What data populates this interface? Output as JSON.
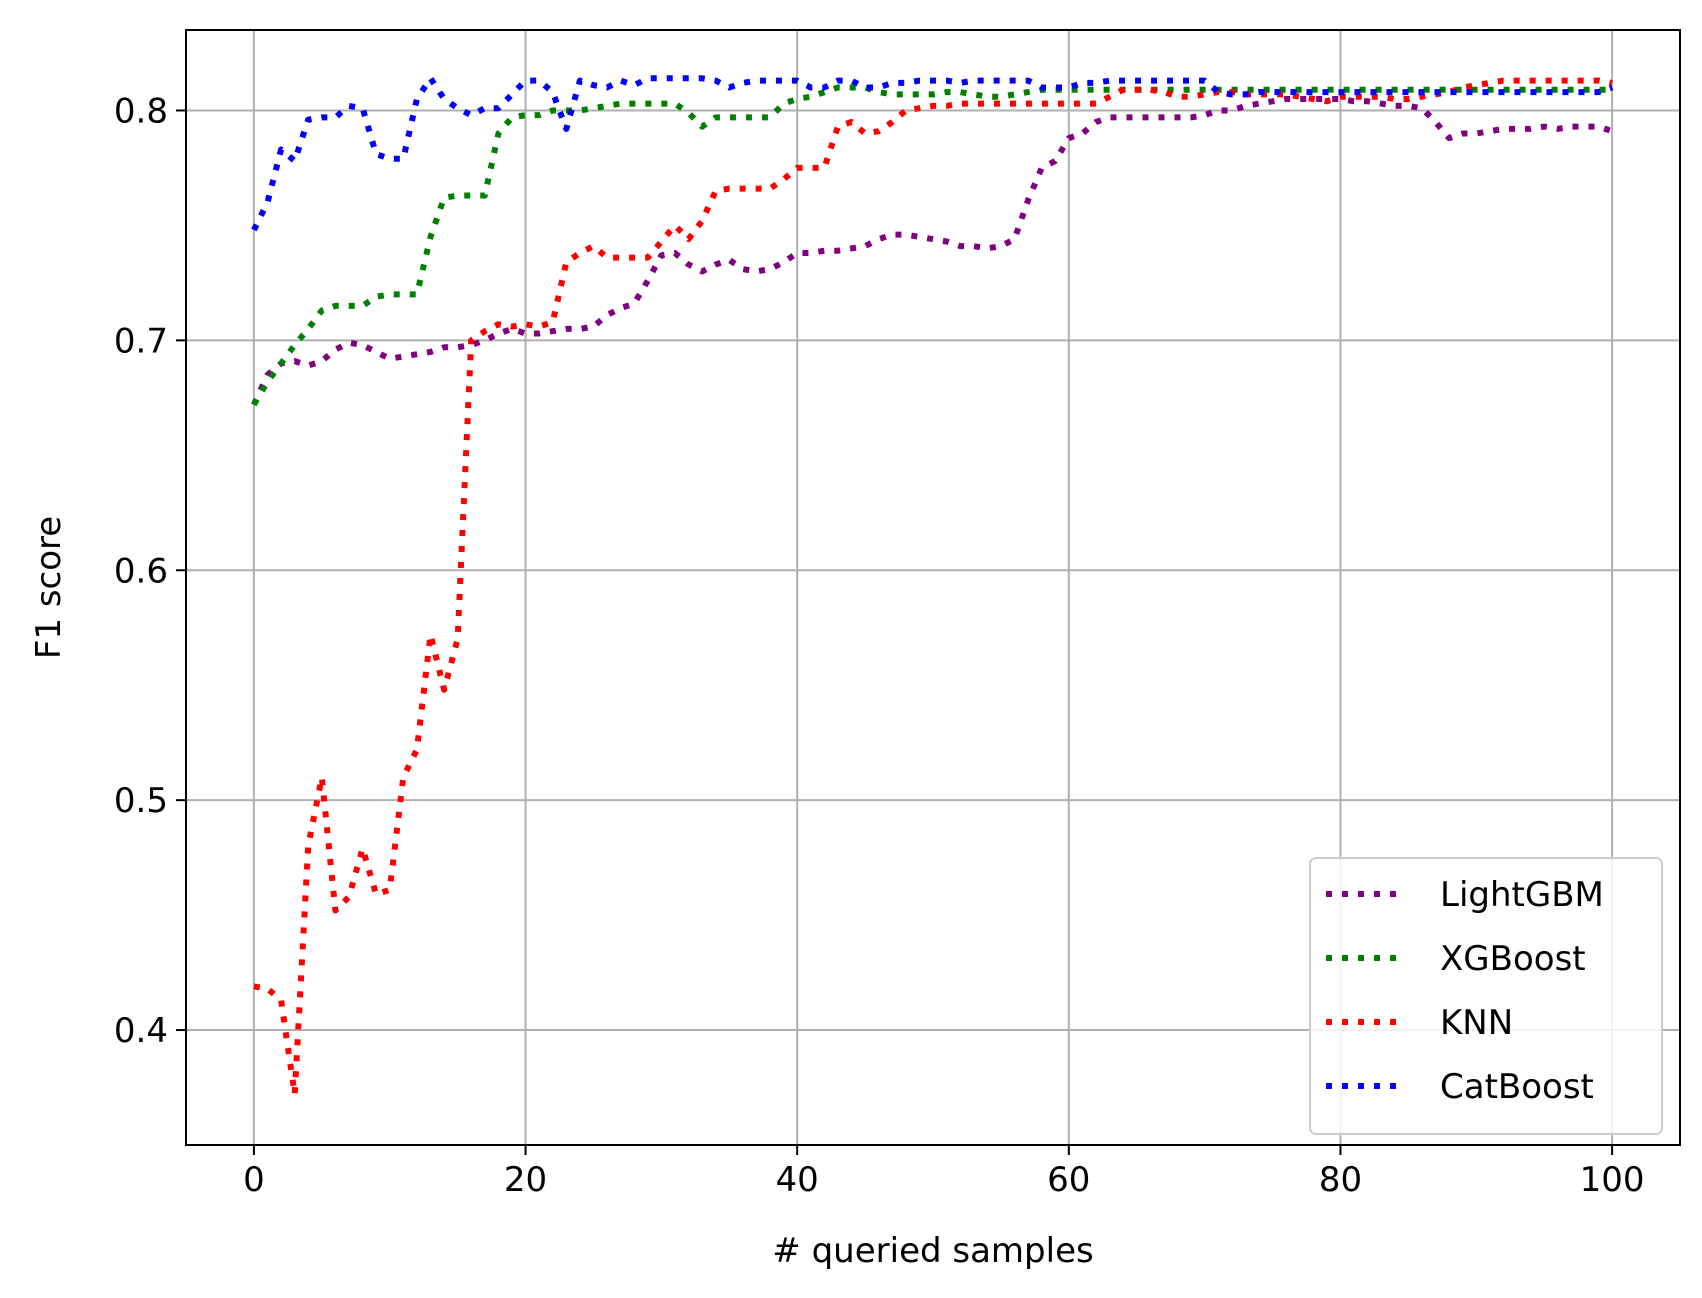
{
  "chart_data": {
    "type": "line",
    "title": "",
    "xlabel": "# queried samples",
    "ylabel": "F1 score",
    "xlim": [
      -5,
      105
    ],
    "ylim": [
      0.35,
      0.835
    ],
    "xticks": [
      0,
      20,
      40,
      60,
      80,
      100
    ],
    "xtick_labels": [
      "0",
      "20",
      "40",
      "60",
      "80",
      "100"
    ],
    "yticks": [
      0.4,
      0.5,
      0.6,
      0.7,
      0.8
    ],
    "ytick_labels": [
      "0.4",
      "0.5",
      "0.6",
      "0.7",
      "0.8"
    ],
    "grid": true,
    "legend_position": "lower-right",
    "line_style": "dotted",
    "series": [
      {
        "name": "LightGBM",
        "color": "#800080",
        "x": [
          0,
          1,
          2,
          3,
          4,
          5,
          6,
          7,
          8,
          9,
          10,
          11,
          12,
          13,
          14,
          15,
          16,
          17,
          18,
          19,
          20,
          21,
          22,
          23,
          24,
          25,
          26,
          27,
          28,
          29,
          30,
          31,
          32,
          33,
          34,
          35,
          36,
          37,
          38,
          39,
          40,
          41,
          42,
          43,
          44,
          45,
          46,
          47,
          48,
          49,
          50,
          51,
          52,
          53,
          54,
          55,
          56,
          57,
          58,
          59,
          60,
          61,
          62,
          63,
          64,
          65,
          66,
          67,
          68,
          69,
          70,
          71,
          72,
          73,
          74,
          75,
          76,
          77,
          78,
          79,
          80,
          81,
          82,
          83,
          84,
          85,
          86,
          87,
          88,
          89,
          90,
          91,
          92,
          93,
          94,
          95,
          96,
          97,
          98,
          99,
          100
        ],
        "values": [
          0.672,
          0.685,
          0.69,
          0.691,
          0.689,
          0.691,
          0.696,
          0.699,
          0.698,
          0.695,
          0.692,
          0.693,
          0.694,
          0.695,
          0.697,
          0.697,
          0.698,
          0.7,
          0.703,
          0.705,
          0.703,
          0.703,
          0.704,
          0.705,
          0.705,
          0.706,
          0.711,
          0.714,
          0.716,
          0.726,
          0.737,
          0.738,
          0.733,
          0.73,
          0.733,
          0.735,
          0.731,
          0.73,
          0.731,
          0.734,
          0.738,
          0.738,
          0.739,
          0.739,
          0.74,
          0.741,
          0.744,
          0.746,
          0.746,
          0.745,
          0.744,
          0.743,
          0.741,
          0.741,
          0.74,
          0.741,
          0.744,
          0.761,
          0.775,
          0.778,
          0.788,
          0.79,
          0.795,
          0.797,
          0.797,
          0.797,
          0.797,
          0.797,
          0.797,
          0.797,
          0.798,
          0.8,
          0.8,
          0.802,
          0.803,
          0.804,
          0.805,
          0.805,
          0.805,
          0.805,
          0.805,
          0.804,
          0.804,
          0.803,
          0.802,
          0.802,
          0.801,
          0.795,
          0.788,
          0.79,
          0.79,
          0.791,
          0.792,
          0.792,
          0.792,
          0.793,
          0.792,
          0.793,
          0.793,
          0.793,
          0.791
        ]
      },
      {
        "name": "XGBoost",
        "color": "#008000",
        "x": [
          0,
          1,
          2,
          3,
          4,
          5,
          6,
          7,
          8,
          9,
          10,
          11,
          12,
          13,
          14,
          15,
          16,
          17,
          18,
          19,
          20,
          21,
          22,
          23,
          24,
          25,
          26,
          27,
          28,
          29,
          30,
          31,
          32,
          33,
          34,
          35,
          36,
          37,
          38,
          39,
          40,
          41,
          42,
          43,
          44,
          45,
          46,
          47,
          48,
          49,
          50,
          51,
          52,
          53,
          54,
          55,
          56,
          57,
          58,
          59,
          60,
          61,
          62,
          63,
          64,
          65,
          66,
          67,
          68,
          69,
          70,
          71,
          72,
          73,
          74,
          75,
          76,
          77,
          78,
          79,
          80,
          81,
          82,
          83,
          84,
          85,
          86,
          87,
          88,
          89,
          90,
          91,
          92,
          93,
          94,
          95,
          96,
          97,
          98,
          99,
          100
        ],
        "values": [
          0.672,
          0.682,
          0.69,
          0.698,
          0.705,
          0.713,
          0.715,
          0.715,
          0.715,
          0.719,
          0.72,
          0.72,
          0.72,
          0.745,
          0.762,
          0.763,
          0.763,
          0.763,
          0.79,
          0.797,
          0.798,
          0.798,
          0.8,
          0.8,
          0.8,
          0.801,
          0.802,
          0.803,
          0.803,
          0.803,
          0.803,
          0.803,
          0.799,
          0.793,
          0.797,
          0.797,
          0.797,
          0.797,
          0.797,
          0.803,
          0.805,
          0.806,
          0.808,
          0.81,
          0.81,
          0.81,
          0.808,
          0.807,
          0.807,
          0.807,
          0.807,
          0.808,
          0.808,
          0.807,
          0.806,
          0.806,
          0.807,
          0.808,
          0.809,
          0.809,
          0.809,
          0.809,
          0.809,
          0.809,
          0.809,
          0.809,
          0.809,
          0.809,
          0.809,
          0.809,
          0.809,
          0.809,
          0.809,
          0.809,
          0.809,
          0.809,
          0.809,
          0.809,
          0.809,
          0.809,
          0.809,
          0.809,
          0.809,
          0.809,
          0.809,
          0.809,
          0.809,
          0.809,
          0.809,
          0.809,
          0.809,
          0.809,
          0.809,
          0.809,
          0.809,
          0.809,
          0.809,
          0.809,
          0.809,
          0.809,
          0.809
        ]
      },
      {
        "name": "KNN",
        "color": "#ff0000",
        "x": [
          0,
          1,
          2,
          3,
          4,
          5,
          6,
          7,
          8,
          9,
          10,
          11,
          12,
          13,
          14,
          15,
          16,
          17,
          18,
          19,
          20,
          21,
          22,
          23,
          24,
          25,
          26,
          27,
          28,
          29,
          30,
          31,
          32,
          33,
          34,
          35,
          36,
          37,
          38,
          39,
          40,
          41,
          42,
          43,
          44,
          45,
          46,
          47,
          48,
          49,
          50,
          51,
          52,
          53,
          54,
          55,
          56,
          57,
          58,
          59,
          60,
          61,
          62,
          63,
          64,
          65,
          66,
          67,
          68,
          69,
          70,
          71,
          72,
          73,
          74,
          75,
          76,
          77,
          78,
          79,
          80,
          81,
          82,
          83,
          84,
          85,
          86,
          87,
          88,
          89,
          90,
          91,
          92,
          93,
          94,
          95,
          96,
          97,
          98,
          99,
          100
        ],
        "values": [
          0.419,
          0.418,
          0.413,
          0.372,
          0.48,
          0.51,
          0.452,
          0.458,
          0.479,
          0.459,
          0.461,
          0.51,
          0.522,
          0.572,
          0.548,
          0.57,
          0.7,
          0.704,
          0.707,
          0.706,
          0.707,
          0.706,
          0.708,
          0.734,
          0.738,
          0.741,
          0.736,
          0.736,
          0.736,
          0.736,
          0.743,
          0.75,
          0.744,
          0.752,
          0.765,
          0.766,
          0.766,
          0.766,
          0.766,
          0.77,
          0.775,
          0.775,
          0.775,
          0.793,
          0.795,
          0.79,
          0.791,
          0.795,
          0.8,
          0.801,
          0.802,
          0.802,
          0.803,
          0.803,
          0.803,
          0.803,
          0.803,
          0.803,
          0.803,
          0.803,
          0.803,
          0.803,
          0.803,
          0.806,
          0.809,
          0.809,
          0.809,
          0.808,
          0.806,
          0.806,
          0.807,
          0.808,
          0.808,
          0.807,
          0.807,
          0.807,
          0.807,
          0.806,
          0.805,
          0.804,
          0.806,
          0.806,
          0.806,
          0.806,
          0.805,
          0.805,
          0.806,
          0.807,
          0.808,
          0.81,
          0.811,
          0.812,
          0.813,
          0.813,
          0.813,
          0.813,
          0.813,
          0.813,
          0.813,
          0.813,
          0.812
        ]
      },
      {
        "name": "CatBoost",
        "color": "#0000ff",
        "x": [
          0,
          1,
          2,
          3,
          4,
          5,
          6,
          7,
          8,
          9,
          10,
          11,
          12,
          13,
          14,
          15,
          16,
          17,
          18,
          19,
          20,
          21,
          22,
          23,
          24,
          25,
          26,
          27,
          28,
          29,
          30,
          31,
          32,
          33,
          34,
          35,
          36,
          37,
          38,
          39,
          40,
          41,
          42,
          43,
          44,
          45,
          46,
          47,
          48,
          49,
          50,
          51,
          52,
          53,
          54,
          55,
          56,
          57,
          58,
          59,
          60,
          61,
          62,
          63,
          64,
          65,
          66,
          67,
          68,
          69,
          70,
          71,
          72,
          73,
          74,
          75,
          76,
          77,
          78,
          79,
          80,
          81,
          82,
          83,
          84,
          85,
          86,
          87,
          88,
          89,
          90,
          91,
          92,
          93,
          94,
          95,
          96,
          97,
          98,
          99,
          100
        ],
        "values": [
          0.748,
          0.76,
          0.783,
          0.778,
          0.796,
          0.797,
          0.797,
          0.802,
          0.801,
          0.781,
          0.779,
          0.779,
          0.805,
          0.814,
          0.805,
          0.801,
          0.798,
          0.801,
          0.801,
          0.807,
          0.813,
          0.813,
          0.808,
          0.792,
          0.813,
          0.811,
          0.81,
          0.813,
          0.811,
          0.814,
          0.814,
          0.814,
          0.814,
          0.814,
          0.813,
          0.81,
          0.812,
          0.813,
          0.813,
          0.813,
          0.813,
          0.81,
          0.81,
          0.813,
          0.813,
          0.81,
          0.81,
          0.812,
          0.812,
          0.813,
          0.813,
          0.813,
          0.812,
          0.813,
          0.813,
          0.813,
          0.813,
          0.813,
          0.81,
          0.81,
          0.81,
          0.812,
          0.812,
          0.813,
          0.813,
          0.813,
          0.813,
          0.813,
          0.813,
          0.813,
          0.813,
          0.808,
          0.807,
          0.807,
          0.808,
          0.808,
          0.808,
          0.808,
          0.808,
          0.808,
          0.808,
          0.808,
          0.808,
          0.808,
          0.808,
          0.808,
          0.808,
          0.808,
          0.808,
          0.808,
          0.808,
          0.808,
          0.808,
          0.808,
          0.808,
          0.808,
          0.808,
          0.808,
          0.808,
          0.808,
          0.81
        ]
      }
    ]
  }
}
